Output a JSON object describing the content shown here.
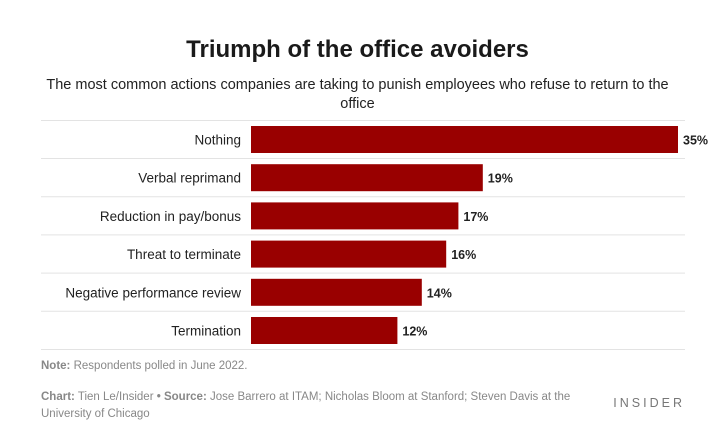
{
  "title": "Triumph of the office avoiders",
  "subtitle": "The most common actions companies are taking to punish employees who refuse to return to the office",
  "chart_data": {
    "type": "bar",
    "orientation": "horizontal",
    "categories": [
      "Nothing",
      "Verbal reprimand",
      "Reduction in pay/bonus",
      "Threat to terminate",
      "Negative performance review",
      "Termination"
    ],
    "values": [
      35,
      19,
      17,
      16,
      14,
      12
    ],
    "value_labels": [
      "35%",
      "19%",
      "17%",
      "16%",
      "14%",
      "12%"
    ],
    "unit": "%",
    "bar_color": "#990000",
    "grid": "horizontal separators"
  },
  "footer": {
    "note_label": "Note:",
    "note_text": "Respondents polled in June 2022.",
    "chart_label": "Chart:",
    "chart_text": "Tien Le/Insider",
    "bullet": "•",
    "source_label": "Source:",
    "source_text": "Jose Barrero at ITAM; Nicholas Bloom at Stanford; Steven Davis at the University of Chicago"
  },
  "logo": "INSIDER"
}
